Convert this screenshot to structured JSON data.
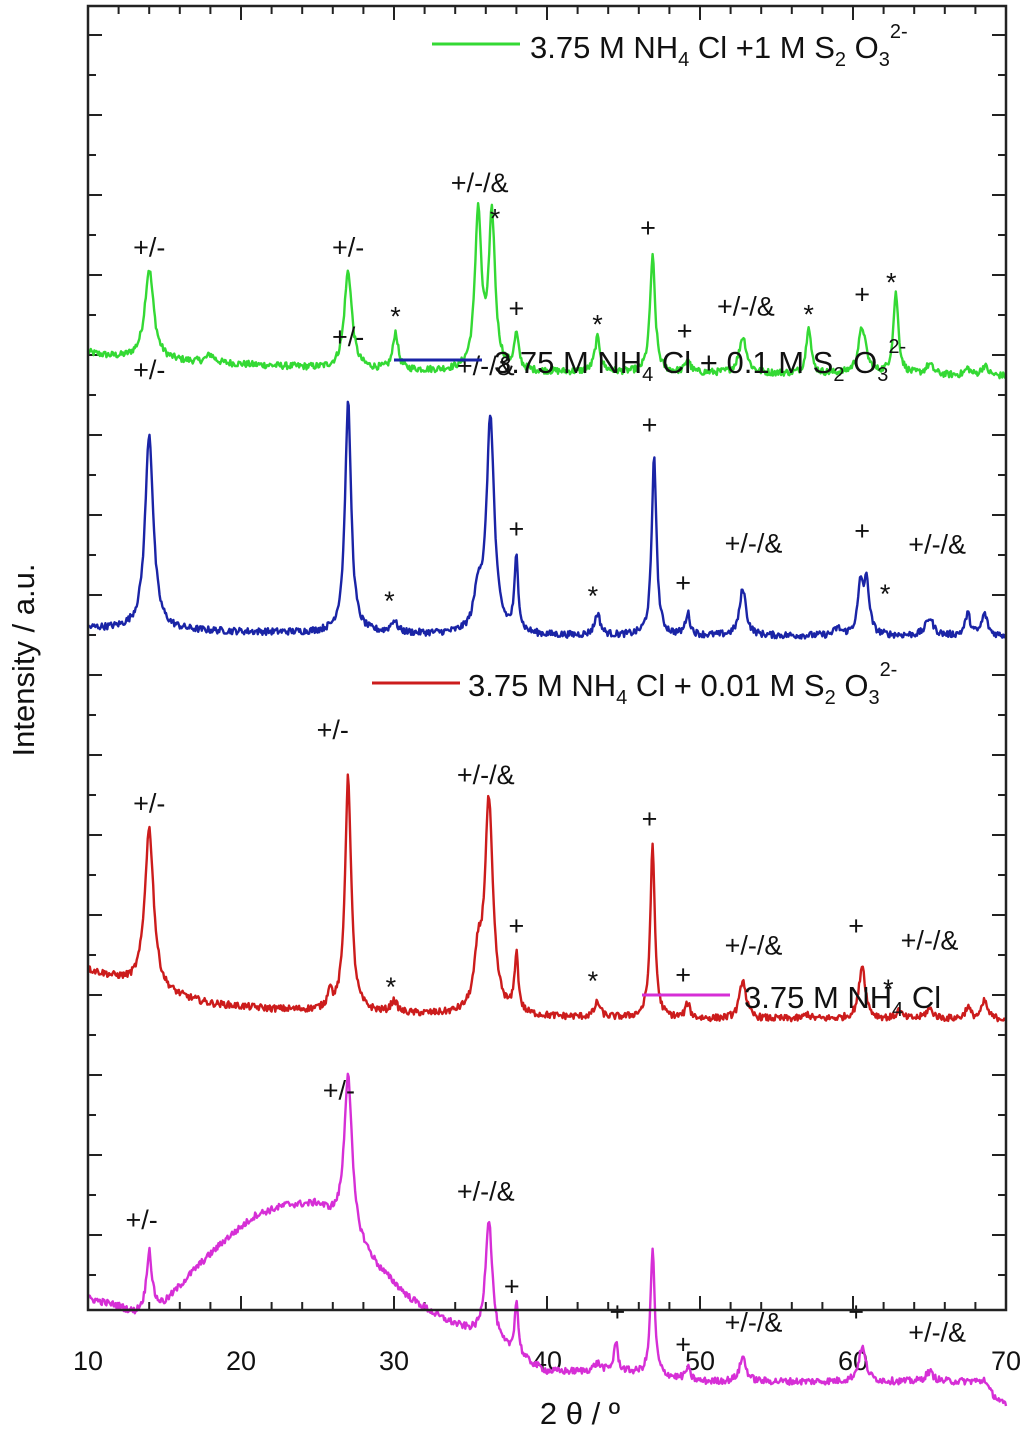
{
  "chart_data": {
    "type": "line",
    "title": "",
    "xlabel": "2 θ / º",
    "ylabel": "Intensity / a.u.",
    "xlim": [
      10,
      70
    ],
    "xticks": [
      "10",
      "20",
      "30",
      "40",
      "50",
      "60",
      "70"
    ],
    "grid": false,
    "legend_placement": "right of each trace, above it",
    "series": [
      {
        "name": "3.75 M NH4 Cl +1 M S2 O3 2-",
        "legend": {
          "pre": "3.75 M NH",
          "sub1": "4",
          "mid1": " Cl +1 M S",
          "sub2": "2",
          "mid2": " O",
          "sub3": "3",
          "sup": "2-"
        },
        "color": "#34d934",
        "baseline": 0.13,
        "background": [
          [
            10,
            0.22
          ],
          [
            11,
            0.19
          ],
          [
            12,
            0.17
          ],
          [
            14,
            0.15
          ],
          [
            16,
            0.13
          ],
          [
            20,
            0.1
          ],
          [
            24,
            0.07
          ],
          [
            26,
            0.05
          ],
          [
            30,
            0.04
          ],
          [
            33,
            0.03
          ],
          [
            40,
            0.02
          ],
          [
            50,
            0.01
          ],
          [
            60,
            0.0
          ],
          [
            70,
            -0.02
          ]
        ],
        "peaks": [
          {
            "x": 14.0,
            "h": 0.92,
            "w": 0.35
          },
          {
            "x": 18.0,
            "h": 0.08,
            "w": 0.3
          },
          {
            "x": 27.0,
            "h": 1.0,
            "w": 0.3
          },
          {
            "x": 30.1,
            "h": 0.38,
            "w": 0.2
          },
          {
            "x": 35.5,
            "h": 1.6,
            "w": 0.25
          },
          {
            "x": 36.4,
            "h": 1.55,
            "w": 0.25
          },
          {
            "x": 38.0,
            "h": 0.35,
            "w": 0.18
          },
          {
            "x": 43.3,
            "h": 0.35,
            "w": 0.22
          },
          {
            "x": 46.9,
            "h": 1.18,
            "w": 0.2
          },
          {
            "x": 49.2,
            "h": 0.14,
            "w": 0.18
          },
          {
            "x": 52.8,
            "h": 0.37,
            "w": 0.3
          },
          {
            "x": 57.1,
            "h": 0.5,
            "w": 0.18
          },
          {
            "x": 60.6,
            "h": 0.47,
            "w": 0.3
          },
          {
            "x": 62.8,
            "h": 0.82,
            "w": 0.2
          },
          {
            "x": 65.0,
            "h": 0.1,
            "w": 0.3
          },
          {
            "x": 67.5,
            "h": 0.07,
            "w": 0.2
          },
          {
            "x": 68.6,
            "h": 0.1,
            "w": 0.25
          }
        ],
        "annotations": [
          {
            "text": "+/-",
            "x": 14.0,
            "y": 1.2
          },
          {
            "text": "+/-",
            "x": 27.0,
            "y": 1.2
          },
          {
            "text": "*",
            "x": 30.1,
            "y": 0.68
          },
          {
            "text": "+/-/&",
            "x": 35.6,
            "y": 1.86
          },
          {
            "text": "*",
            "x": 36.6,
            "y": 1.68
          },
          {
            "text": "+",
            "x": 38.0,
            "y": 0.58
          },
          {
            "text": "*",
            "x": 43.3,
            "y": 0.6
          },
          {
            "text": "+",
            "x": 46.6,
            "y": 1.4
          },
          {
            "text": "+",
            "x": 49.0,
            "y": 0.35
          },
          {
            "text": "+/-/&",
            "x": 53.0,
            "y": 0.6
          },
          {
            "text": "*",
            "x": 57.1,
            "y": 0.7
          },
          {
            "text": "+",
            "x": 60.6,
            "y": 0.72
          },
          {
            "text": "*",
            "x": 62.5,
            "y": 1.03
          }
        ]
      },
      {
        "name": "3.75 M NH4 Cl + 0.1 M S2 O3 2-",
        "legend": {
          "pre": "3.75 M NH",
          "sub1": "4",
          "mid1": " Cl + 0.1 M S",
          "sub2": "2",
          "mid2": " O",
          "sub3": "3",
          "sup": "2-"
        },
        "color": "#1a24a6",
        "baseline": -2.54,
        "background": [
          [
            10,
            0.08
          ],
          [
            14,
            0.06
          ],
          [
            20,
            0.04
          ],
          [
            30,
            0.02
          ],
          [
            40,
            0.0
          ],
          [
            50,
            0.0
          ],
          [
            60,
            0.0
          ],
          [
            70,
            0.0
          ]
        ],
        "peaks": [
          {
            "x": 14.0,
            "h": 2.0,
            "w": 0.32
          },
          {
            "x": 27.0,
            "h": 2.35,
            "w": 0.24
          },
          {
            "x": 30.0,
            "h": 0.12,
            "w": 0.25
          },
          {
            "x": 36.3,
            "h": 2.2,
            "w": 0.3
          },
          {
            "x": 35.5,
            "h": 0.4,
            "w": 0.3
          },
          {
            "x": 38.0,
            "h": 0.75,
            "w": 0.15
          },
          {
            "x": 43.3,
            "h": 0.22,
            "w": 0.22
          },
          {
            "x": 47.0,
            "h": 1.85,
            "w": 0.18
          },
          {
            "x": 49.2,
            "h": 0.22,
            "w": 0.18
          },
          {
            "x": 52.8,
            "h": 0.48,
            "w": 0.25
          },
          {
            "x": 59.0,
            "h": 0.07,
            "w": 0.25
          },
          {
            "x": 60.5,
            "h": 0.5,
            "w": 0.22
          },
          {
            "x": 60.9,
            "h": 0.5,
            "w": 0.2
          },
          {
            "x": 65.0,
            "h": 0.18,
            "w": 0.3
          },
          {
            "x": 67.5,
            "h": 0.22,
            "w": 0.2
          },
          {
            "x": 68.6,
            "h": 0.22,
            "w": 0.22
          }
        ],
        "annotations": [
          {
            "text": "+/-",
            "x": 14.0,
            "y": 2.62
          },
          {
            "text": "+/-",
            "x": 27.0,
            "y": 2.96
          },
          {
            "text": "*",
            "x": 29.7,
            "y": 0.45
          },
          {
            "text": "+/-/&",
            "x": 36.0,
            "y": 2.66
          },
          {
            "text": "+",
            "x": 38.0,
            "y": 1.0
          },
          {
            "text": "*",
            "x": 43.0,
            "y": 0.5
          },
          {
            "text": "+",
            "x": 46.7,
            "y": 2.06
          },
          {
            "text": "+",
            "x": 48.9,
            "y": 0.45
          },
          {
            "text": "+/-/&",
            "x": 53.5,
            "y": 0.85
          },
          {
            "text": "+",
            "x": 60.6,
            "y": 0.98
          },
          {
            "text": "*",
            "x": 62.1,
            "y": 0.52
          },
          {
            "text": "+/-/&",
            "x": 65.5,
            "y": 0.84
          }
        ]
      },
      {
        "name": "3.75 M NH4 Cl + 0.01 M S2 O3 2-",
        "legend": {
          "pre": "3.75 M NH",
          "sub1": "4",
          "mid1": " Cl + 0.01 M S",
          "sub2": "2",
          "mid2": " O",
          "sub3": "3",
          "sup": "2-"
        },
        "color": "#cc1c1c",
        "baseline": -6.45,
        "background": [
          [
            10,
            0.5
          ],
          [
            11,
            0.45
          ],
          [
            12,
            0.4
          ],
          [
            13,
            0.34
          ],
          [
            15,
            0.25
          ],
          [
            18,
            0.15
          ],
          [
            22,
            0.1
          ],
          [
            30,
            0.05
          ],
          [
            40,
            0.02
          ],
          [
            50,
            0.0
          ],
          [
            70,
            0.0
          ]
        ],
        "peaks": [
          {
            "x": 14.0,
            "h": 1.65,
            "w": 0.35
          },
          {
            "x": 27.0,
            "h": 2.4,
            "w": 0.24
          },
          {
            "x": 25.8,
            "h": 0.2,
            "w": 0.15
          },
          {
            "x": 30.0,
            "h": 0.12,
            "w": 0.25
          },
          {
            "x": 36.2,
            "h": 2.15,
            "w": 0.32
          },
          {
            "x": 35.5,
            "h": 0.5,
            "w": 0.3
          },
          {
            "x": 38.0,
            "h": 0.6,
            "w": 0.15
          },
          {
            "x": 43.3,
            "h": 0.15,
            "w": 0.22
          },
          {
            "x": 46.9,
            "h": 1.75,
            "w": 0.18
          },
          {
            "x": 49.2,
            "h": 0.15,
            "w": 0.18
          },
          {
            "x": 52.8,
            "h": 0.4,
            "w": 0.25
          },
          {
            "x": 57.0,
            "h": 0.05,
            "w": 0.2
          },
          {
            "x": 60.6,
            "h": 0.55,
            "w": 0.25
          },
          {
            "x": 63.0,
            "h": 0.08,
            "w": 0.2
          },
          {
            "x": 65.0,
            "h": 0.1,
            "w": 0.3
          },
          {
            "x": 67.5,
            "h": 0.12,
            "w": 0.2
          },
          {
            "x": 68.6,
            "h": 0.18,
            "w": 0.22
          }
        ],
        "annotations": [
          {
            "text": "+/-",
            "x": 14.0,
            "y": 2.11
          },
          {
            "text": "+/-",
            "x": 26.0,
            "y": 2.86
          },
          {
            "text": "*",
            "x": 29.8,
            "y": 0.42
          },
          {
            "text": "+/-/&",
            "x": 36.0,
            "y": 2.4
          },
          {
            "text": "+",
            "x": 38.0,
            "y": 0.86
          },
          {
            "text": "*",
            "x": 43.0,
            "y": 0.48
          },
          {
            "text": "+",
            "x": 46.7,
            "y": 1.95
          },
          {
            "text": "+",
            "x": 48.9,
            "y": 0.36
          },
          {
            "text": "+/-/&",
            "x": 53.5,
            "y": 0.66
          },
          {
            "text": "+",
            "x": 60.2,
            "y": 0.86
          },
          {
            "text": "*",
            "x": 62.3,
            "y": 0.4
          },
          {
            "text": "+/-/&",
            "x": 65.0,
            "y": 0.71
          }
        ]
      },
      {
        "name": "3.75 M NH4 Cl",
        "legend": {
          "pre": "3.75 M NH",
          "sub1": "4",
          "mid1": " Cl",
          "sub2": "",
          "mid2": "",
          "sub3": "",
          "sup": ""
        },
        "color": "#d62fd6",
        "baseline": -10.2,
        "background": [
          [
            10,
            0.9
          ],
          [
            12,
            0.82
          ],
          [
            13,
            0.75
          ],
          [
            15,
            0.85
          ],
          [
            17,
            1.2
          ],
          [
            19,
            1.5
          ],
          [
            21,
            1.75
          ],
          [
            23,
            1.85
          ],
          [
            25,
            1.85
          ],
          [
            27,
            1.6
          ],
          [
            29,
            1.2
          ],
          [
            31,
            0.9
          ],
          [
            33,
            0.7
          ],
          [
            35,
            0.55
          ],
          [
            38,
            0.3
          ],
          [
            40,
            0.15
          ],
          [
            45,
            0.15
          ],
          [
            50,
            0.05
          ],
          [
            55,
            0.05
          ],
          [
            60,
            0.05
          ],
          [
            65,
            0.05
          ],
          [
            68,
            0.05
          ],
          [
            70,
            -0.2
          ]
        ],
        "peaks": [
          {
            "x": 14.0,
            "h": 0.6,
            "w": 0.2
          },
          {
            "x": 27.0,
            "h": 1.6,
            "w": 0.3
          },
          {
            "x": 36.2,
            "h": 1.25,
            "w": 0.28
          },
          {
            "x": 38.0,
            "h": 0.55,
            "w": 0.15
          },
          {
            "x": 43.3,
            "h": 0.08,
            "w": 0.3
          },
          {
            "x": 44.5,
            "h": 0.3,
            "w": 0.15
          },
          {
            "x": 46.9,
            "h": 1.3,
            "w": 0.16
          },
          {
            "x": 49.2,
            "h": 0.12,
            "w": 0.18
          },
          {
            "x": 52.8,
            "h": 0.25,
            "w": 0.25
          },
          {
            "x": 60.6,
            "h": 0.35,
            "w": 0.28
          },
          {
            "x": 65.0,
            "h": 0.1,
            "w": 0.3
          },
          {
            "x": 68.6,
            "h": 0.1,
            "w": 0.22
          }
        ],
        "annotations": [
          {
            "text": "+/-",
            "x": 13.5,
            "y": 1.61
          },
          {
            "text": "+/-",
            "x": 26.4,
            "y": 2.93
          },
          {
            "text": "+/-/&",
            "x": 36.0,
            "y": 1.9
          },
          {
            "text": "+",
            "x": 37.7,
            "y": 0.93
          },
          {
            "text": "+",
            "x": 44.6,
            "y": 0.67
          },
          {
            "text": "+",
            "x": 48.9,
            "y": 0.34
          },
          {
            "text": "+/-/&",
            "x": 53.5,
            "y": 0.56
          },
          {
            "text": "+",
            "x": 60.2,
            "y": 0.67
          },
          {
            "text": "+/-/&",
            "x": 65.5,
            "y": 0.46
          }
        ]
      }
    ]
  }
}
